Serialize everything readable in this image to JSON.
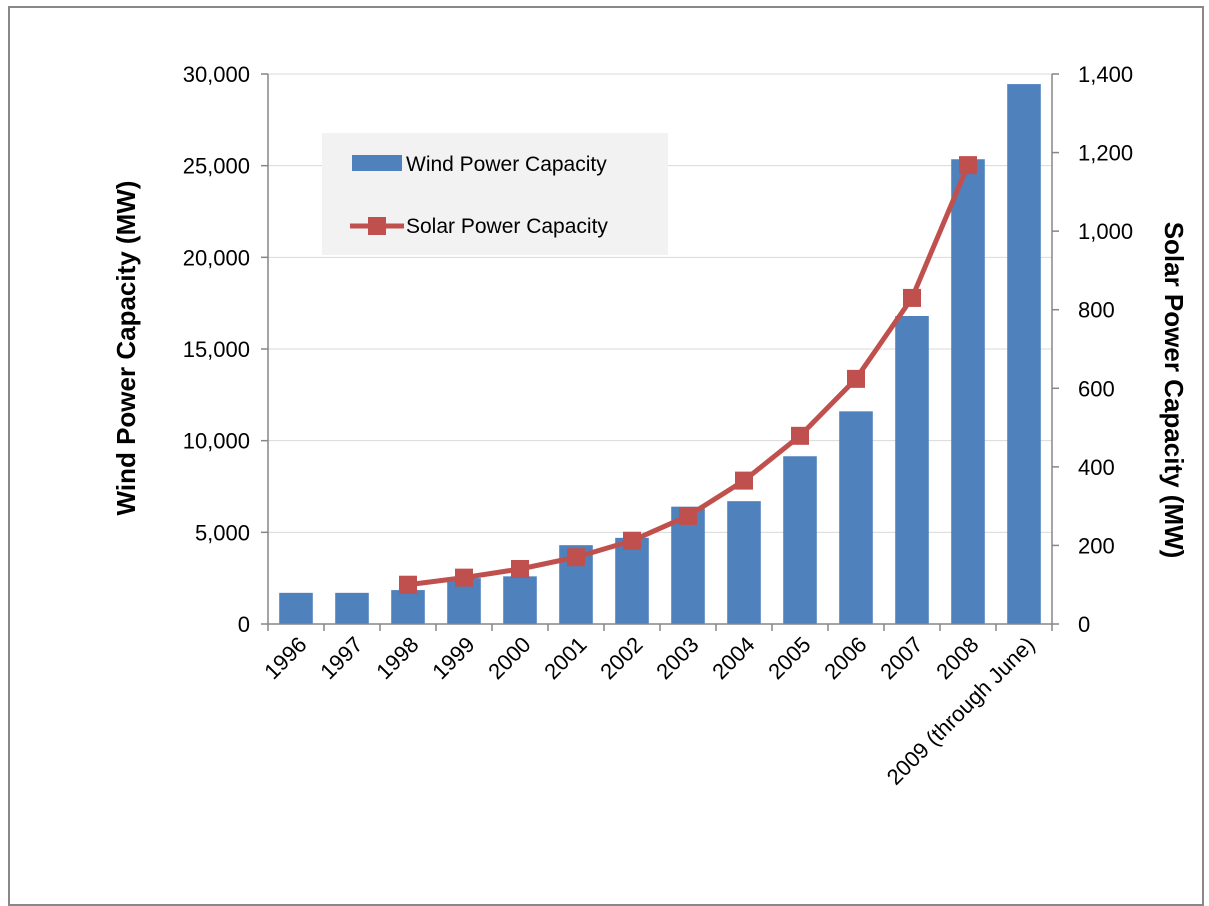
{
  "chart_data": {
    "type": "bar",
    "categories": [
      "1996",
      "1997",
      "1998",
      "1999",
      "2000",
      "2001",
      "2002",
      "2003",
      "2004",
      "2005",
      "2006",
      "2007",
      "2008",
      "2009 (through June)"
    ],
    "series": [
      {
        "name": "Wind Power Capacity",
        "type": "bar",
        "axis": "left",
        "color": "#4f81bd",
        "values": [
          1700,
          1700,
          1850,
          2500,
          2600,
          4300,
          4700,
          6400,
          6700,
          9150,
          11600,
          16800,
          25350,
          29450
        ]
      },
      {
        "name": "Solar Power Capacity",
        "type": "line",
        "axis": "right",
        "color": "#c0504d",
        "marker": "square",
        "values": [
          null,
          null,
          100,
          118,
          140,
          170,
          212,
          275,
          365,
          479,
          624,
          830,
          1168,
          null
        ]
      }
    ],
    "ylabel_left": "Wind Power Capacity (MW)",
    "ylabel_right": "Solar Power Capacity (MW)",
    "xlabel": "",
    "ylim_left": [
      0,
      30000
    ],
    "ylim_right": [
      0,
      1400
    ],
    "yticks_left": [
      "0",
      "5,000",
      "10,000",
      "15,000",
      "20,000",
      "25,000",
      "30,000"
    ],
    "yticks_right": [
      "0",
      "200",
      "400",
      "600",
      "800",
      "1,000",
      "1,200",
      "1,400"
    ],
    "yticks_left_values": [
      0,
      5000,
      10000,
      15000,
      20000,
      25000,
      30000
    ],
    "yticks_right_values": [
      0,
      200,
      400,
      600,
      800,
      1000,
      1200,
      1400
    ],
    "grid": "horizontal",
    "legend_position": "top-left"
  }
}
